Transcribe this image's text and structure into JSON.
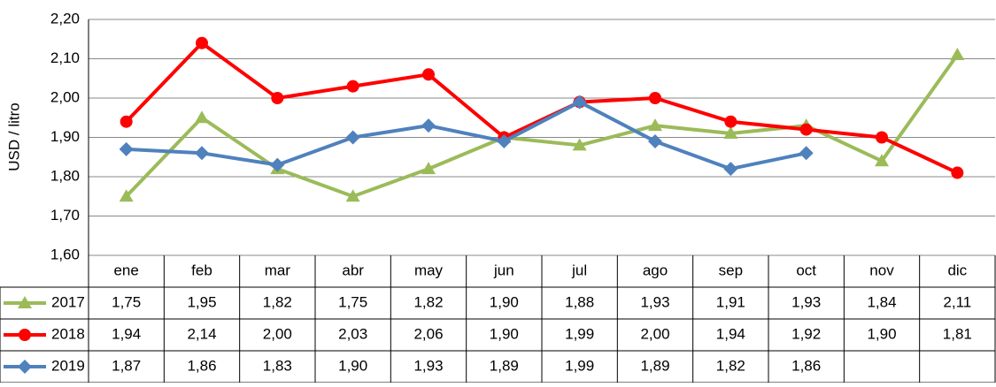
{
  "chart_data": {
    "type": "line",
    "y_label": "USD / litro",
    "categories": [
      "ene",
      "feb",
      "mar",
      "abr",
      "may",
      "jun",
      "jul",
      "ago",
      "sep",
      "oct",
      "nov",
      "dic"
    ],
    "series": [
      {
        "name": "2017",
        "color": "#9bbb59",
        "marker": "triangle",
        "values": [
          1.75,
          1.95,
          1.82,
          1.75,
          1.82,
          1.9,
          1.88,
          1.93,
          1.91,
          1.93,
          1.84,
          2.11
        ],
        "value_labels": [
          "1,75",
          "1,95",
          "1,82",
          "1,75",
          "1,82",
          "1,90",
          "1,88",
          "1,93",
          "1,91",
          "1,93",
          "1,84",
          "2,11"
        ]
      },
      {
        "name": "2018",
        "color": "#ff0000",
        "marker": "circle",
        "values": [
          1.94,
          2.14,
          2.0,
          2.03,
          2.06,
          1.9,
          1.99,
          2.0,
          1.94,
          1.92,
          1.9,
          1.81
        ],
        "value_labels": [
          "1,94",
          "2,14",
          "2,00",
          "2,03",
          "2,06",
          "1,90",
          "1,99",
          "2,00",
          "1,94",
          "1,92",
          "1,90",
          "1,81"
        ]
      },
      {
        "name": "2019",
        "color": "#4f81bd",
        "marker": "diamond",
        "values": [
          1.87,
          1.86,
          1.83,
          1.9,
          1.93,
          1.89,
          1.99,
          1.89,
          1.82,
          1.86,
          null,
          null
        ],
        "value_labels": [
          "1,87",
          "1,86",
          "1,83",
          "1,90",
          "1,93",
          "1,89",
          "1,99",
          "1,89",
          "1,82",
          "1,86",
          null,
          null
        ]
      }
    ],
    "ylim": [
      1.6,
      2.2
    ],
    "yticks": [
      {
        "value": 1.6,
        "label": "1,60"
      },
      {
        "value": 1.7,
        "label": "1,70"
      },
      {
        "value": 1.8,
        "label": "1,80"
      },
      {
        "value": 1.9,
        "label": "1,90"
      },
      {
        "value": 2.0,
        "label": "2,00"
      },
      {
        "value": 2.1,
        "label": "2,10"
      },
      {
        "value": 2.2,
        "label": "2,20"
      }
    ],
    "grid": true
  }
}
